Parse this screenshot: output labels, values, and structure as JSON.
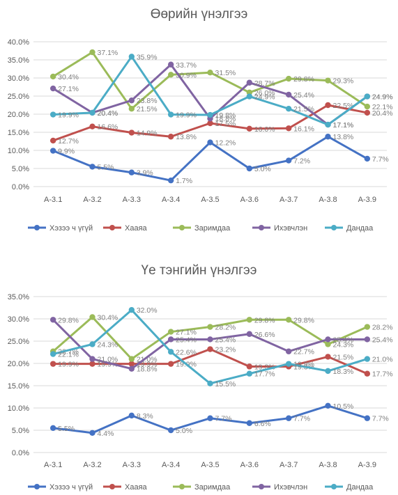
{
  "chart_data": [
    {
      "type": "line",
      "title": "Өөрийн үнэлгээ",
      "categories": [
        "А-3.1",
        "А-3.2",
        "А-3.3",
        "А-3.4",
        "А-3.5",
        "А-3.6",
        "А-3.7",
        "А-3.8",
        "А-3.9"
      ],
      "ylim": [
        0,
        40
      ],
      "yticks": [
        "0.0%",
        "5.0%",
        "10.0%",
        "15.0%",
        "20.0%",
        "25.0%",
        "30.0%",
        "35.0%",
        "40.0%"
      ],
      "grid": true,
      "legend": "bottom",
      "series": [
        {
          "name": "Хэзээ ч үгүй",
          "color": "#4472c4",
          "values": [
            9.9,
            5.5,
            3.9,
            1.7,
            12.2,
            5.0,
            7.2,
            13.8,
            7.7
          ],
          "labels": [
            "9.9%",
            "5.5%",
            "3.9%",
            "1.7%",
            "12.2%",
            "5.0%",
            "7.2%",
            "13.8%",
            "7.7%"
          ]
        },
        {
          "name": "Хааяа",
          "color": "#c0504d",
          "values": [
            12.7,
            16.6,
            14.9,
            13.8,
            17.5,
            16.0,
            16.1,
            22.5,
            20.4
          ],
          "labels": [
            "12.7%",
            "16.6%",
            "14.9%",
            "13.8%",
            "17.5%",
            "16.0%",
            "16.1%",
            "22.5%",
            "20.4%"
          ]
        },
        {
          "name": "Заримдаа",
          "color": "#9bbb59",
          "values": [
            30.4,
            37.1,
            21.5,
            30.9,
            31.5,
            26.0,
            29.8,
            29.3,
            22.1
          ],
          "labels": [
            "30.4%",
            "37.1%",
            "21.5%",
            "30.9%",
            "31.5%",
            "26.0%",
            "29.8%",
            "29.3%",
            "22.1%"
          ]
        },
        {
          "name": "Ихэвчлэн",
          "color": "#8064a2",
          "values": [
            27.1,
            20.4,
            23.8,
            33.7,
            18.8,
            28.7,
            25.4,
            17.1,
            24.9
          ],
          "labels": [
            "27.1%",
            "20.4%",
            "23.8%",
            "33.7%",
            "18.8%",
            "28.7%",
            "25.4%",
            "17.1%",
            "24.9%"
          ]
        },
        {
          "name": "Дандаа",
          "color": "#4bacc6",
          "values": [
            19.9,
            20.4,
            35.9,
            19.9,
            19.8,
            24.9,
            21.5,
            17.1,
            24.9
          ],
          "labels": [
            "19.9%",
            "20.4%",
            "35.9%",
            "19.9%",
            "19.8%",
            "24.9%",
            "21.5%",
            "17.1%",
            "24.9%"
          ]
        }
      ]
    },
    {
      "type": "line",
      "title": "Үе тэнгийн үнэлгээ",
      "categories": [
        "А-3.1",
        "А-3.2",
        "А-3.3",
        "А-3.4",
        "А-3.5",
        "А-3.6",
        "А-3.7",
        "А-3.8",
        "А-3.9"
      ],
      "ylim": [
        0,
        35
      ],
      "yticks": [
        "0.0%",
        "5.0%",
        "10.0%",
        "15.0%",
        "20.0%",
        "25.0%",
        "30.0%",
        "35.0%"
      ],
      "grid": true,
      "legend": "bottom",
      "series": [
        {
          "name": "Хэзээ ч үгүй",
          "color": "#4472c4",
          "values": [
            5.5,
            4.4,
            8.3,
            5.0,
            7.7,
            6.6,
            7.7,
            10.5,
            7.7
          ],
          "labels": [
            "5.5%",
            "4.4%",
            "8.3%",
            "5.0%",
            "7.7%",
            "6.6%",
            "7.7%",
            "10.5%",
            "7.7%"
          ]
        },
        {
          "name": "Хааяа",
          "color": "#c0504d",
          "values": [
            19.9,
            19.9,
            19.9,
            19.9,
            23.2,
            19.3,
            19.3,
            21.5,
            17.7
          ],
          "labels": [
            "19.9%",
            "19.9%",
            "19.9%",
            "19.9%",
            "23.2%",
            "19.3%",
            "19.3%",
            "21.5%",
            "17.7%"
          ]
        },
        {
          "name": "Заримдаа",
          "color": "#9bbb59",
          "values": [
            22.7,
            30.4,
            21.0,
            27.1,
            28.2,
            29.8,
            29.8,
            24.3,
            28.2
          ],
          "labels": [
            "22.7%",
            "30.4%",
            "21.0%",
            "27.1%",
            "28.2%",
            "29.8%",
            "29.8%",
            "24.3%",
            "28.2%"
          ]
        },
        {
          "name": "Ихэвчлэн",
          "color": "#8064a2",
          "values": [
            29.8,
            21.0,
            18.8,
            25.4,
            25.4,
            26.6,
            22.7,
            25.4,
            25.4
          ],
          "labels": [
            "29.8%",
            "21.0%",
            "18.8%",
            "25.4%",
            "25.4%",
            "26.6%",
            "22.7%",
            "25.4%",
            "25.4%"
          ]
        },
        {
          "name": "Дандаа",
          "color": "#4bacc6",
          "values": [
            22.1,
            24.3,
            32.0,
            22.6,
            15.5,
            17.7,
            19.9,
            18.3,
            21.0
          ],
          "labels": [
            "22.1%",
            "24.3%",
            "32.0%",
            "22.6%",
            "15.5%",
            "17.7%",
            "19.9%",
            "18.3%",
            "21.0%"
          ]
        }
      ]
    }
  ]
}
